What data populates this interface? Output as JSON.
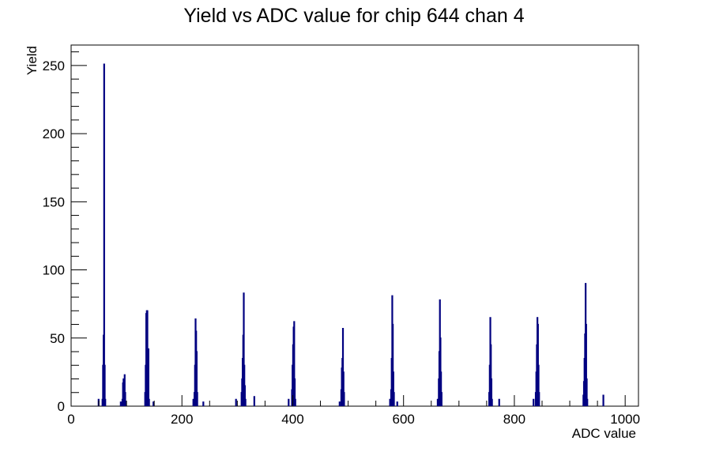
{
  "chart_data": {
    "type": "bar",
    "title": "Yield vs ADC value for chip 644 chan 4",
    "xlabel": "ADC value",
    "ylabel": "Yield",
    "xlim": [
      0,
      1024
    ],
    "ylim": [
      0,
      265
    ],
    "xticks": [
      0,
      200,
      400,
      600,
      800,
      1000
    ],
    "yticks": [
      0,
      50,
      100,
      150,
      200,
      250
    ],
    "grid": false,
    "line_color": "#000080",
    "bins": [
      {
        "x": 49,
        "y": 5
      },
      {
        "x": 56,
        "y": 5
      },
      {
        "x": 57,
        "y": 30
      },
      {
        "x": 58,
        "y": 52
      },
      {
        "x": 59,
        "y": 251
      },
      {
        "x": 60,
        "y": 30
      },
      {
        "x": 61,
        "y": 5
      },
      {
        "x": 89,
        "y": 3
      },
      {
        "x": 92,
        "y": 5
      },
      {
        "x": 93,
        "y": 17
      },
      {
        "x": 94,
        "y": 20
      },
      {
        "x": 95,
        "y": 17
      },
      {
        "x": 96,
        "y": 23
      },
      {
        "x": 97,
        "y": 10
      },
      {
        "x": 98,
        "y": 3
      },
      {
        "x": 133,
        "y": 10
      },
      {
        "x": 134,
        "y": 30
      },
      {
        "x": 135,
        "y": 68
      },
      {
        "x": 136,
        "y": 70
      },
      {
        "x": 137,
        "y": 70
      },
      {
        "x": 138,
        "y": 30
      },
      {
        "x": 139,
        "y": 42
      },
      {
        "x": 140,
        "y": 5
      },
      {
        "x": 148,
        "y": 3
      },
      {
        "x": 220,
        "y": 5
      },
      {
        "x": 222,
        "y": 10
      },
      {
        "x": 223,
        "y": 30
      },
      {
        "x": 224,
        "y": 64
      },
      {
        "x": 225,
        "y": 55
      },
      {
        "x": 226,
        "y": 40
      },
      {
        "x": 227,
        "y": 10
      },
      {
        "x": 238,
        "y": 3
      },
      {
        "x": 297,
        "y": 5
      },
      {
        "x": 307,
        "y": 10
      },
      {
        "x": 308,
        "y": 20
      },
      {
        "x": 309,
        "y": 35
      },
      {
        "x": 310,
        "y": 52
      },
      {
        "x": 311,
        "y": 83
      },
      {
        "x": 312,
        "y": 30
      },
      {
        "x": 313,
        "y": 15
      },
      {
        "x": 314,
        "y": 5
      },
      {
        "x": 330,
        "y": 7
      },
      {
        "x": 392,
        "y": 5
      },
      {
        "x": 398,
        "y": 12
      },
      {
        "x": 399,
        "y": 30
      },
      {
        "x": 400,
        "y": 45
      },
      {
        "x": 401,
        "y": 58
      },
      {
        "x": 402,
        "y": 62
      },
      {
        "x": 403,
        "y": 20
      },
      {
        "x": 404,
        "y": 5
      },
      {
        "x": 484,
        "y": 3
      },
      {
        "x": 487,
        "y": 12
      },
      {
        "x": 488,
        "y": 28
      },
      {
        "x": 489,
        "y": 35
      },
      {
        "x": 490,
        "y": 57
      },
      {
        "x": 491,
        "y": 25
      },
      {
        "x": 492,
        "y": 10
      },
      {
        "x": 575,
        "y": 5
      },
      {
        "x": 577,
        "y": 12
      },
      {
        "x": 578,
        "y": 35
      },
      {
        "x": 579,
        "y": 81
      },
      {
        "x": 580,
        "y": 60
      },
      {
        "x": 581,
        "y": 25
      },
      {
        "x": 582,
        "y": 10
      },
      {
        "x": 588,
        "y": 3
      },
      {
        "x": 661,
        "y": 5
      },
      {
        "x": 663,
        "y": 20
      },
      {
        "x": 664,
        "y": 40
      },
      {
        "x": 665,
        "y": 78
      },
      {
        "x": 666,
        "y": 50
      },
      {
        "x": 667,
        "y": 25
      },
      {
        "x": 668,
        "y": 10
      },
      {
        "x": 754,
        "y": 10
      },
      {
        "x": 755,
        "y": 30
      },
      {
        "x": 756,
        "y": 65
      },
      {
        "x": 757,
        "y": 45
      },
      {
        "x": 758,
        "y": 20
      },
      {
        "x": 759,
        "y": 5
      },
      {
        "x": 772,
        "y": 5
      },
      {
        "x": 834,
        "y": 5
      },
      {
        "x": 838,
        "y": 10
      },
      {
        "x": 839,
        "y": 25
      },
      {
        "x": 840,
        "y": 45
      },
      {
        "x": 841,
        "y": 65
      },
      {
        "x": 842,
        "y": 60
      },
      {
        "x": 843,
        "y": 30
      },
      {
        "x": 844,
        "y": 10
      },
      {
        "x": 924,
        "y": 8
      },
      {
        "x": 925,
        "y": 18
      },
      {
        "x": 926,
        "y": 35
      },
      {
        "x": 927,
        "y": 53
      },
      {
        "x": 928,
        "y": 90
      },
      {
        "x": 929,
        "y": 60
      },
      {
        "x": 930,
        "y": 20
      },
      {
        "x": 931,
        "y": 5
      },
      {
        "x": 960,
        "y": 8
      }
    ]
  }
}
